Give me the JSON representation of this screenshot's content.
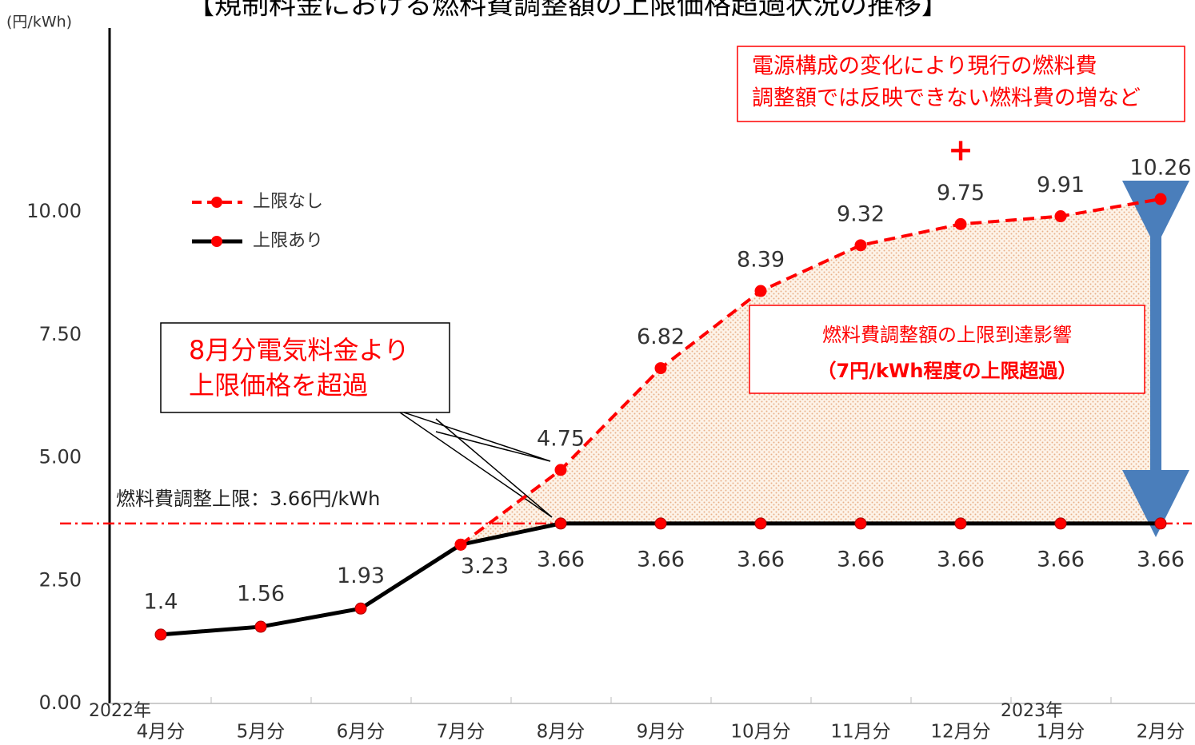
{
  "chart_data": {
    "type": "line",
    "title": "【規制料金における燃料費調整額の上限価格超過状況の推移】",
    "y_unit": "(円/kWh)",
    "categories": [
      "4月分",
      "5月分",
      "6月分",
      "7月分",
      "8月分",
      "9月分",
      "10月分",
      "11月分",
      "12月分",
      "1月分",
      "2月分"
    ],
    "year_labels": [
      "2022年",
      "2023年"
    ],
    "series": [
      {
        "name": "上限なし",
        "color": "#ff0000",
        "dashed": true,
        "values": [
          null,
          null,
          null,
          3.23,
          4.75,
          6.82,
          8.39,
          9.32,
          9.75,
          9.91,
          10.26
        ],
        "show_labels_from": 4
      },
      {
        "name": "上限あり",
        "color": "#000000",
        "dashed": false,
        "values": [
          1.4,
          1.56,
          1.93,
          3.23,
          3.66,
          3.66,
          3.66,
          3.66,
          3.66,
          3.66,
          3.66
        ]
      }
    ],
    "cap": {
      "value": 3.66,
      "label": "燃料費調整上限：3.66円/kWh",
      "color": "#ff0000"
    },
    "ylim": [
      0,
      13.74
    ],
    "yticks": [
      {
        "value": 0,
        "label": "0.00"
      },
      {
        "value": 2.5,
        "label": "2.50"
      },
      {
        "value": 5,
        "label": "5.00"
      },
      {
        "value": 7.5,
        "label": "7.50"
      },
      {
        "value": 10,
        "label": "10.00"
      }
    ],
    "grid": false,
    "legend": "upper left",
    "annotations": {
      "callout": [
        "8月分電気料金より",
        "上限価格を超過"
      ],
      "top_box": [
        "電源構成の変化により現行の燃料費",
        "調整額では反映できない燃料費の増など"
      ],
      "plus": "+",
      "impact_box": [
        "燃料費調整額の上限到達影響",
        "（7円/kWh程度の上限超過）"
      ]
    }
  }
}
